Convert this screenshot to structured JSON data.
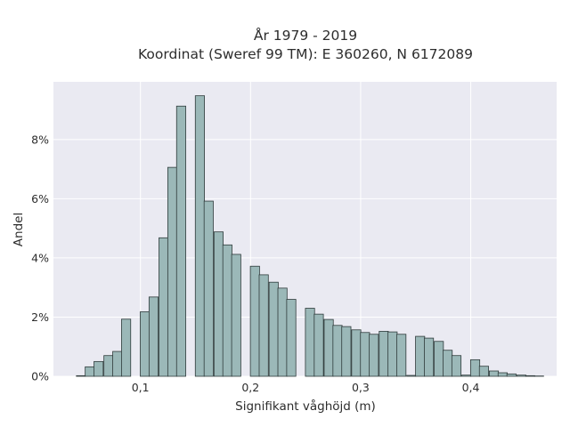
{
  "chart_data": {
    "type": "bar",
    "title": "År 1979 - 2019",
    "subtitle": "Koordinat (Sweref 99 TM): E 360260, N 6172089",
    "xlabel": "Signifikant våghöjd (m)",
    "ylabel": "Andel",
    "xlim": [
      0.021,
      0.478
    ],
    "ylim": [
      0,
      0.0995
    ],
    "x_ticks": [
      0.1,
      0.2,
      0.3,
      0.4
    ],
    "x_tick_labels": [
      "0,1",
      "0,2",
      "0,3",
      "0,4"
    ],
    "y_ticks": [
      0,
      0.02,
      0.04,
      0.06,
      0.08
    ],
    "y_tick_labels": [
      "0%",
      "2%",
      "4%",
      "6%",
      "8%"
    ],
    "bin_width": 0.00833,
    "grid": true,
    "background_color": "#eaeaf2",
    "bar_color": "#9bb8b8",
    "edge_color": "#2f3b3b",
    "x": [
      0.046,
      0.054,
      0.062,
      0.071,
      0.079,
      0.087,
      0.104,
      0.112,
      0.121,
      0.129,
      0.137,
      0.154,
      0.162,
      0.171,
      0.179,
      0.187,
      0.204,
      0.212,
      0.221,
      0.229,
      0.237,
      0.254,
      0.262,
      0.271,
      0.279,
      0.287,
      0.296,
      0.304,
      0.312,
      0.321,
      0.329,
      0.337,
      0.346,
      0.354,
      0.362,
      0.371,
      0.379,
      0.387,
      0.396,
      0.404,
      0.412,
      0.421,
      0.429,
      0.437,
      0.446,
      0.454,
      0.462
    ],
    "values": [
      0.0002,
      0.0032,
      0.005,
      0.007,
      0.0084,
      0.0193,
      0.0218,
      0.0268,
      0.0468,
      0.0706,
      0.0913,
      0.0948,
      0.0592,
      0.0488,
      0.0444,
      0.0412,
      0.0372,
      0.0343,
      0.0318,
      0.0298,
      0.026,
      0.023,
      0.021,
      0.0192,
      0.0172,
      0.0168,
      0.0157,
      0.0148,
      0.0142,
      0.0152,
      0.015,
      0.0142,
      0.0003,
      0.0135,
      0.0129,
      0.0118,
      0.0088,
      0.007,
      0.0004,
      0.0056,
      0.0034,
      0.0018,
      0.0012,
      0.0008,
      0.0004,
      0.0002,
      0.0001
    ]
  }
}
